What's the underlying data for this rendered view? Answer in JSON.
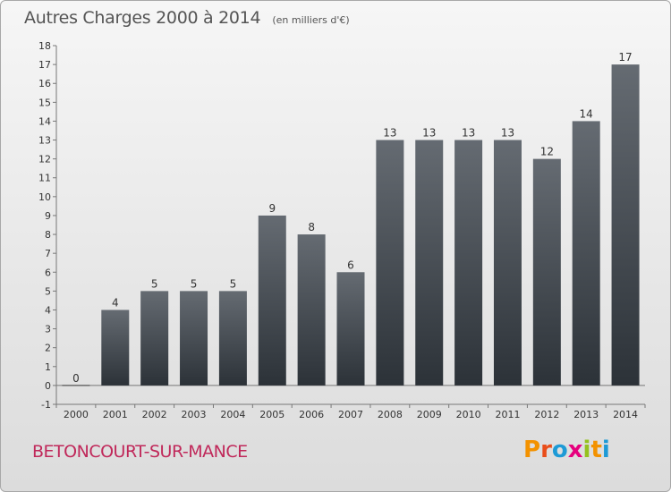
{
  "header": {
    "title": "Autres Charges 2000 à 2014",
    "subtitle": "(en milliers d'€)"
  },
  "footer": {
    "commune": "BETONCOURT-SUR-MANCE",
    "brand": "Proxiti",
    "brand_colors": [
      "#f39200",
      "#e94e1b",
      "#1d9ad6",
      "#e6007e",
      "#95c11f",
      "#f39200",
      "#1d9ad6"
    ]
  },
  "colors": {
    "bar_top": "#656b72",
    "bar_bottom": "#2c3238",
    "axis": "#777777",
    "text": "#333333"
  },
  "chart_data": {
    "type": "bar",
    "title": "Autres Charges 2000 à 2014",
    "subtitle": "(en milliers d'€)",
    "categories": [
      "2000",
      "2001",
      "2002",
      "2003",
      "2004",
      "2005",
      "2006",
      "2007",
      "2008",
      "2009",
      "2010",
      "2011",
      "2012",
      "2013",
      "2014"
    ],
    "values": [
      0,
      4,
      5,
      5,
      5,
      9,
      8,
      6,
      13,
      13,
      13,
      13,
      12,
      14,
      17
    ],
    "ylim": [
      -1,
      18
    ],
    "yticks": [
      "-1",
      "0",
      "1",
      "2",
      "3",
      "4",
      "5",
      "6",
      "7",
      "8",
      "9",
      "10",
      "11",
      "12",
      "13",
      "14",
      "15",
      "16",
      "17",
      "18"
    ],
    "grid": false
  }
}
